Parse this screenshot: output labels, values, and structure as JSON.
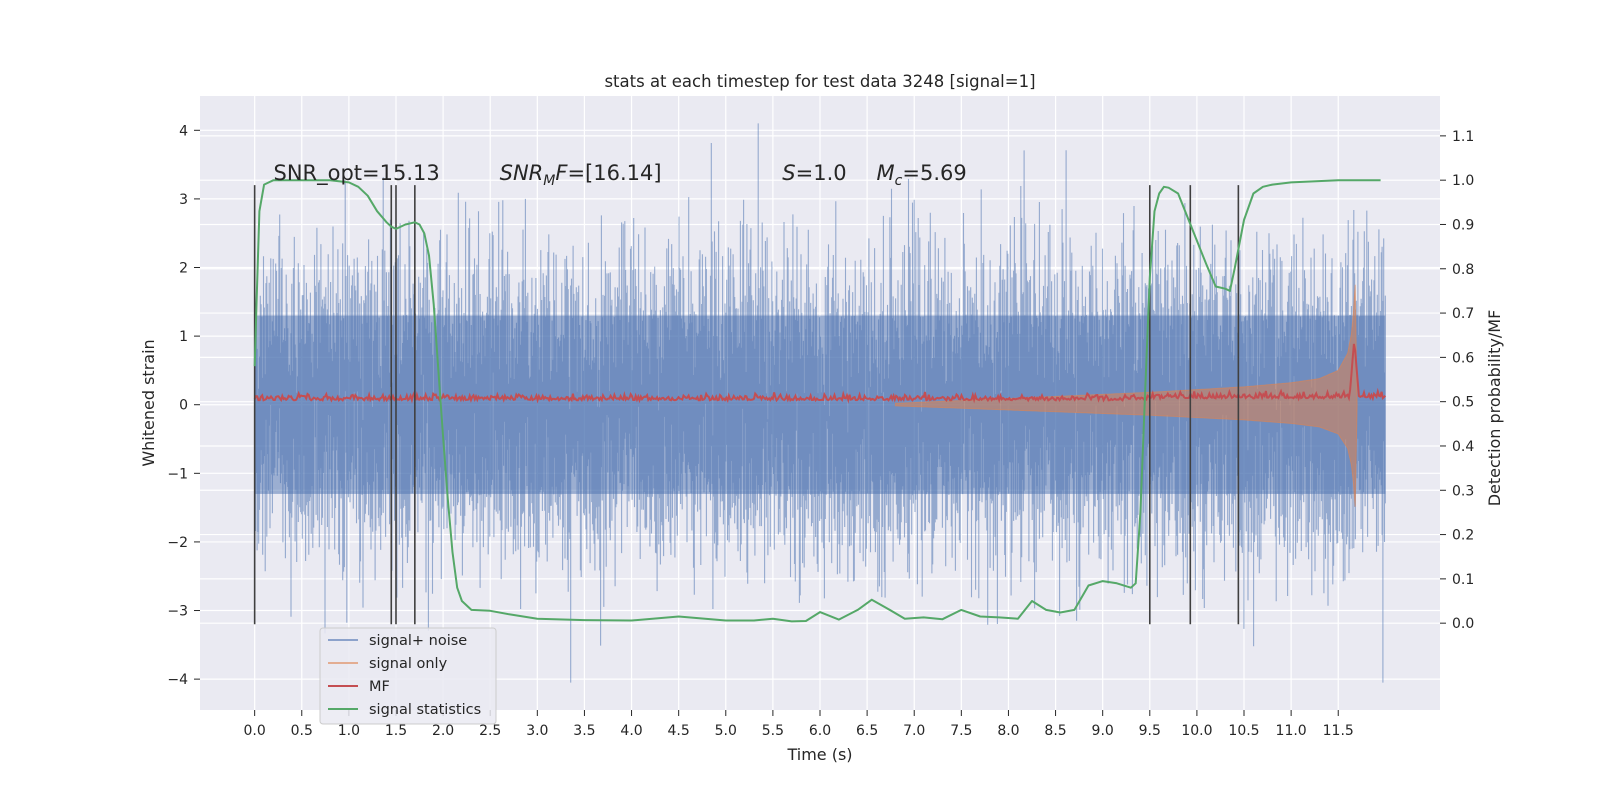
{
  "chart_data": {
    "type": "line",
    "title": "stats at each timestep for test data 3248 [signal=1]",
    "xlabel": "Time (s)",
    "ylabel": "Whitened strain",
    "y2label": "Detection probability/MF",
    "xlim": [
      -0.58,
      12.58
    ],
    "ylim": [
      -4.45,
      4.5
    ],
    "y2lim": [
      -0.196,
      1.19
    ],
    "x_ticks": [
      0.0,
      0.5,
      1.0,
      1.5,
      2.0,
      2.5,
      3.0,
      3.5,
      4.0,
      4.5,
      5.0,
      5.5,
      6.0,
      6.5,
      7.0,
      7.5,
      8.0,
      8.5,
      9.0,
      9.5,
      10.0,
      10.5,
      11.0,
      11.5
    ],
    "x_tick_labels": [
      "0.0",
      "0.5",
      "1.0",
      "1.5",
      "2.0",
      "2.5",
      "3.0",
      "3.5",
      "4.0",
      "4.5",
      "5.0",
      "5.5",
      "6.0",
      "6.5",
      "7.0",
      "7.5",
      "8.0",
      "8.5",
      "9.0",
      "9.5",
      "10.0",
      "10.5",
      "11.0",
      "11.5"
    ],
    "y_ticks": [
      4,
      3,
      2,
      1,
      0,
      -1,
      -2,
      -3,
      -4
    ],
    "y_tick_labels": [
      "4",
      "3",
      "2",
      "1",
      "0",
      "−1",
      "−2",
      "−3",
      "−4"
    ],
    "y2_ticks": [
      1.1,
      1.0,
      0.9,
      0.8,
      0.7,
      0.6,
      0.5,
      0.4,
      0.3,
      0.2,
      0.1,
      0.0
    ],
    "y2_tick_labels": [
      "1.1",
      "1.0",
      "0.9",
      "0.8",
      "0.7",
      "0.6",
      "0.5",
      "0.4",
      "0.3",
      "0.2",
      "0.1",
      "0.0"
    ],
    "grid": true,
    "legend_position": "lower-left",
    "annotations": [
      {
        "text": "SNR_opt=15.13",
        "x": 0.2,
        "y2": 1.0
      },
      {
        "text": "SNR_MF=[16.14]",
        "x": 2.6,
        "y2": 1.0
      },
      {
        "text": "S=1.0",
        "x": 5.6,
        "y2": 1.0
      },
      {
        "text": "Mc=5.69",
        "x": 6.6,
        "y2": 1.0
      }
    ],
    "vertical_lines_x": [
      0.0,
      1.45,
      1.5,
      1.7,
      9.5,
      9.93,
      10.44
    ],
    "series": [
      {
        "name": "signal+ noise",
        "axis": "left",
        "color": "#4c72b0",
        "opacity": 0.5,
        "description_values": {
          "x_start": 0.0,
          "x_end": 12.0,
          "typical_abs": 2.0,
          "max": 4.1,
          "min": -4.05
        }
      },
      {
        "name": "signal only",
        "axis": "left",
        "color": "#dd8452",
        "envelope_x": [
          6.8,
          7.5,
          8.0,
          8.5,
          9.0,
          9.5,
          10.0,
          10.5,
          11.0,
          11.3,
          11.5,
          11.6,
          11.65,
          11.68,
          11.7
        ],
        "envelope_y": [
          0.02,
          0.06,
          0.09,
          0.12,
          0.15,
          0.18,
          0.22,
          0.26,
          0.32,
          0.38,
          0.5,
          0.75,
          1.1,
          1.75,
          0.0
        ]
      },
      {
        "name": "MF",
        "axis": "right",
        "color": "#c44e52",
        "baseline": 0.5,
        "peak": {
          "x": 11.67,
          "y": 0.64
        }
      },
      {
        "name": "signal statistics",
        "axis": "right",
        "color": "#55a868",
        "x": [
          0.0,
          0.02,
          0.05,
          0.1,
          0.15,
          0.2,
          0.3,
          0.5,
          0.8,
          1.0,
          1.1,
          1.2,
          1.3,
          1.4,
          1.45,
          1.5,
          1.6,
          1.7,
          1.75,
          1.8,
          1.85,
          1.9,
          1.95,
          2.0,
          2.05,
          2.1,
          2.15,
          2.2,
          2.3,
          2.5,
          2.7,
          3.0,
          3.5,
          4.0,
          4.5,
          5.0,
          5.3,
          5.5,
          5.7,
          5.85,
          6.0,
          6.2,
          6.4,
          6.55,
          6.7,
          6.9,
          7.1,
          7.3,
          7.5,
          7.7,
          7.9,
          8.1,
          8.25,
          8.4,
          8.55,
          8.7,
          8.85,
          9.0,
          9.15,
          9.3,
          9.35,
          9.4,
          9.45,
          9.5,
          9.55,
          9.6,
          9.65,
          9.7,
          9.8,
          9.95,
          10.1,
          10.2,
          10.3,
          10.35,
          10.4,
          10.5,
          10.6,
          10.7,
          10.8,
          11.0,
          11.5,
          11.95
        ],
        "y": [
          0.58,
          0.72,
          0.93,
          0.99,
          0.995,
          1.0,
          1.0,
          1.0,
          1.0,
          0.995,
          0.985,
          0.965,
          0.93,
          0.905,
          0.895,
          0.89,
          0.9,
          0.905,
          0.9,
          0.88,
          0.83,
          0.72,
          0.57,
          0.42,
          0.28,
          0.16,
          0.08,
          0.05,
          0.03,
          0.028,
          0.02,
          0.01,
          0.007,
          0.006,
          0.015,
          0.006,
          0.006,
          0.01,
          0.004,
          0.005,
          0.025,
          0.008,
          0.03,
          0.053,
          0.035,
          0.01,
          0.013,
          0.009,
          0.03,
          0.015,
          0.013,
          0.01,
          0.05,
          0.03,
          0.024,
          0.03,
          0.085,
          0.095,
          0.09,
          0.08,
          0.09,
          0.25,
          0.52,
          0.78,
          0.93,
          0.97,
          0.985,
          0.983,
          0.97,
          0.89,
          0.81,
          0.76,
          0.755,
          0.75,
          0.8,
          0.91,
          0.97,
          0.985,
          0.99,
          0.995,
          1.0,
          1.0
        ]
      }
    ]
  }
}
